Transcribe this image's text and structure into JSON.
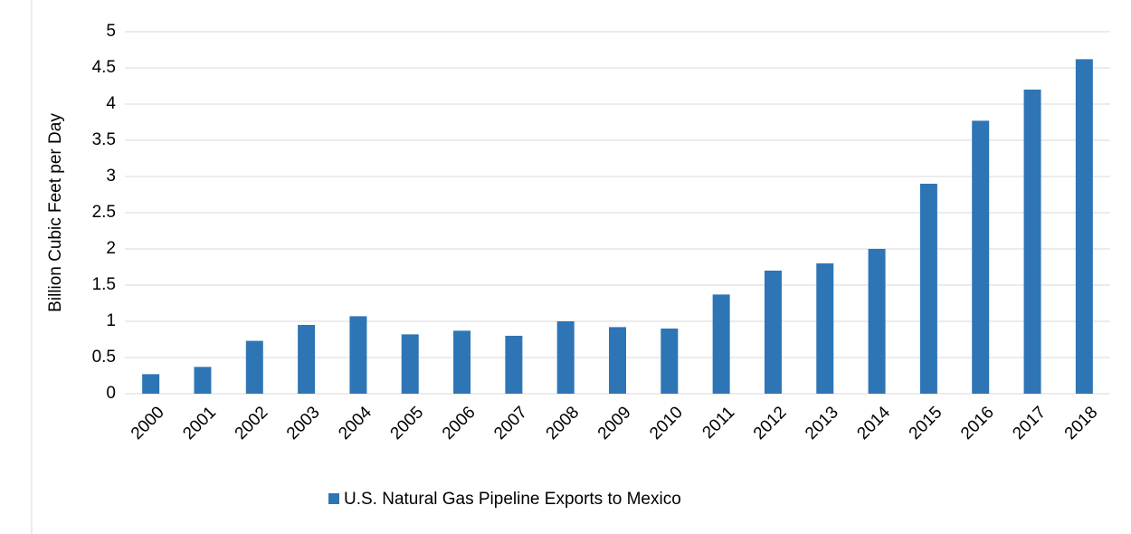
{
  "chart_data": {
    "type": "bar",
    "y_label": "Billion Cubic Feet per Day",
    "categories": [
      "2000",
      "2001",
      "2002",
      "2003",
      "2004",
      "2005",
      "2006",
      "2007",
      "2008",
      "2009",
      "2010",
      "2011",
      "2012",
      "2013",
      "2014",
      "2015",
      "2016",
      "2017",
      "2018"
    ],
    "series": [
      {
        "name": "U.S. Natural Gas Pipeline Exports to Mexico",
        "color": "#2e75b6",
        "values": [
          0.27,
          0.37,
          0.73,
          0.95,
          1.07,
          0.82,
          0.87,
          0.8,
          1.0,
          0.92,
          0.9,
          1.37,
          1.7,
          1.8,
          2.0,
          2.9,
          3.77,
          4.2,
          4.62
        ]
      }
    ],
    "ylim": [
      0,
      5
    ],
    "yticks": [
      0,
      0.5,
      1,
      1.5,
      2,
      2.5,
      3,
      3.5,
      4,
      4.5,
      5
    ],
    "grid": true,
    "legend": "bottom"
  }
}
